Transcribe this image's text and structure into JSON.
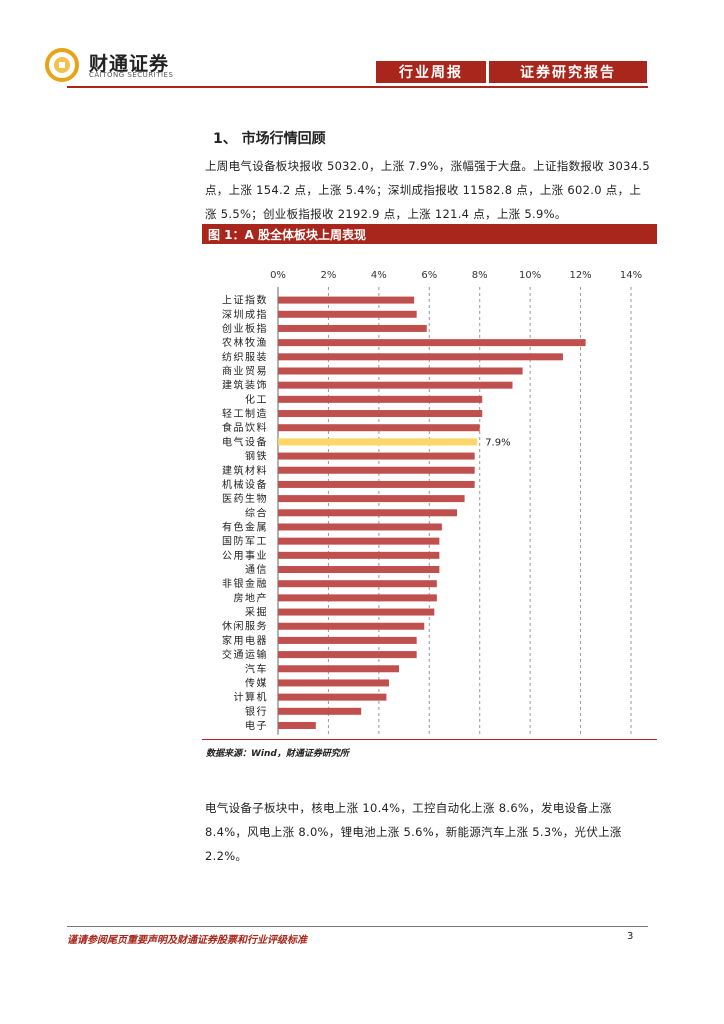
{
  "header": {
    "logo_cn": "财通证券",
    "logo_en": "CAITONG SECURITIES",
    "tag1": "行业周报",
    "tag2": "证券研究报告"
  },
  "section": {
    "title": "1、 市场行情回顾",
    "paragraph": "上周电气设备板块报收 5032.0，上涨 7.9%，涨幅强于大盘。上证指数报收 3034.5 点，上涨 154.2 点，上涨 5.4%；深圳成指报收 11582.8 点，上涨 602.0 点，上涨 5.5%；创业板指报收 2192.9 点，上涨 121.4 点，上涨 5.9%。"
  },
  "figure": {
    "title": "图 1：A 股全体板块上周表现",
    "source": "数据来源：Wind，财通证券研究所"
  },
  "chart_data": {
    "type": "bar",
    "orientation": "horizontal",
    "title": "",
    "xlabel": "",
    "ylabel": "",
    "xlim": [
      0,
      14
    ],
    "ticks": [
      "0%",
      "2%",
      "4%",
      "6%",
      "8%",
      "10%",
      "12%",
      "14%"
    ],
    "grid": "vertical dashed",
    "bar_color": "#c0504d",
    "highlight_color": "#fcd667",
    "highlight_category": "电气设备",
    "highlight_label": "7.9%",
    "categories": [
      "上证指数",
      "深圳成指",
      "创业板指",
      "农林牧渔",
      "纺织服装",
      "商业贸易",
      "建筑装饰",
      "化工",
      "轻工制造",
      "食品饮料",
      "电气设备",
      "钢铁",
      "建筑材料",
      "机械设备",
      "医药生物",
      "综合",
      "有色金属",
      "国防军工",
      "公用事业",
      "通信",
      "非银金融",
      "房地产",
      "采掘",
      "休闲服务",
      "家用电器",
      "交通运输",
      "汽车",
      "传媒",
      "计算机",
      "银行",
      "电子"
    ],
    "values": [
      5.4,
      5.5,
      5.9,
      12.2,
      11.3,
      9.7,
      9.3,
      8.1,
      8.1,
      8.0,
      7.9,
      7.8,
      7.8,
      7.8,
      7.4,
      7.1,
      6.5,
      6.4,
      6.4,
      6.4,
      6.3,
      6.3,
      6.2,
      5.8,
      5.5,
      5.5,
      4.8,
      4.4,
      4.3,
      3.3,
      1.5
    ]
  },
  "body2": {
    "paragraph": "电气设备子板块中，核电上涨 10.4%，工控自动化上涨 8.6%，发电设备上涨 8.4%，风电上涨 8.0%，锂电池上涨 5.6%，新能源汽车上涨 5.3%，光伏上涨 2.2%。"
  },
  "footer": {
    "disclaimer": "谨请参阅尾页重要声明及财通证券股票和行业评级标准",
    "page": "3"
  }
}
